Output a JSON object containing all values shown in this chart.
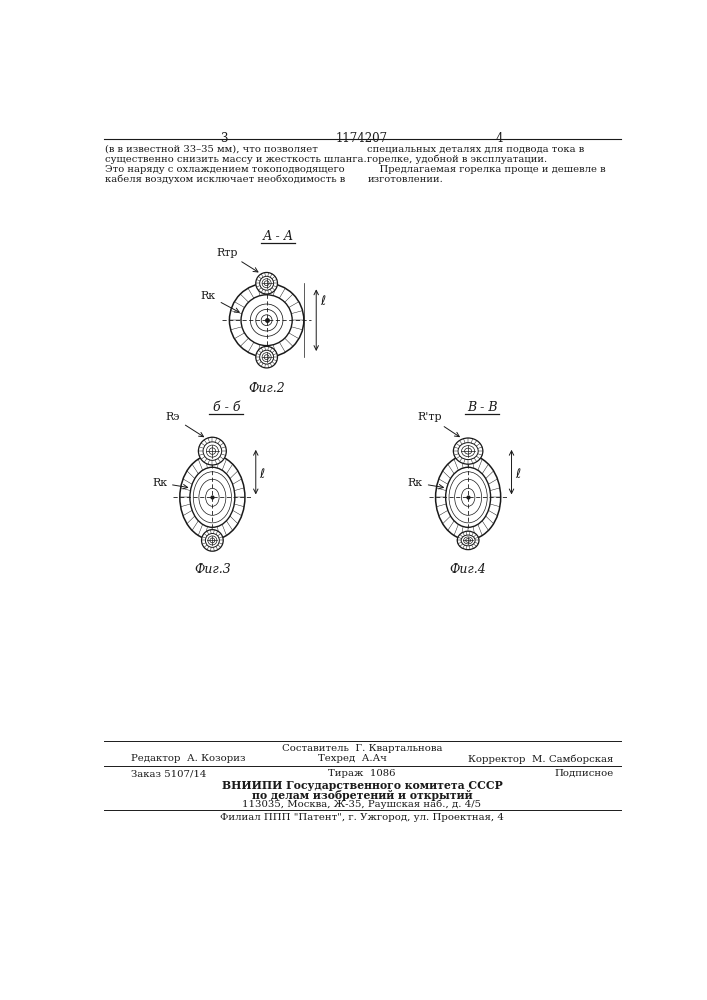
{
  "page_number_left": "3",
  "page_number_right": "4",
  "patent_number": "1174207",
  "fig2_label": "А - А",
  "fig2_caption": "Фиг.2",
  "fig2_Rtp_label": "Rтр",
  "fig2_Rk_label": "Rк",
  "fig3_label": "б - б",
  "fig3_caption": "Фиг.3",
  "fig3_Rz_label": "Rэ",
  "fig3_Rk_label": "Rк",
  "fig4_label": "В - В",
  "fig4_caption": "Фиг.4",
  "fig4_Rtp_label": "R'тр",
  "fig4_Rk_label": "Rк",
  "text_left_1": "(в в известной 33–35 мм), что позволяет",
  "text_left_2": "существенно снизить массу и жесткость шланга.",
  "text_left_3": "Это наряду с охлаждением токоподводящего",
  "text_left_4": "кабеля воздухом исключает необходимость в",
  "text_right_1": "специальных деталях для подвода тока в",
  "text_right_2": "горелке, удобной в эксплуатации.",
  "text_right_3": "    Предлагаемая горелка проще и дешевле в",
  "text_right_4": "изготовлении.",
  "footer_editor": "Редактор  А. Козориз",
  "footer_comp": "Составитель  Г. Квартальнова",
  "footer_tech": "Техред  А.Ач",
  "footer_corr": "Корректор  М. Самборская",
  "footer_order": "Заказ 5107/14",
  "footer_tirazh": "Тираж  1086",
  "footer_podp": "Подписное",
  "footer_vniip1": "ВНИИПИ Государственного комитета СССР",
  "footer_vniip2": "по делам изобретений и открытий",
  "footer_vniip3": "113035, Москва, Ж-35, Раушская наб., д. 4/5",
  "footer_filial": "Филиал ППП \"Патент\", г. Ужгород, ул. Проектная, 4",
  "bg_color": "#ffffff",
  "line_color": "#1a1a1a",
  "text_color": "#1a1a1a"
}
